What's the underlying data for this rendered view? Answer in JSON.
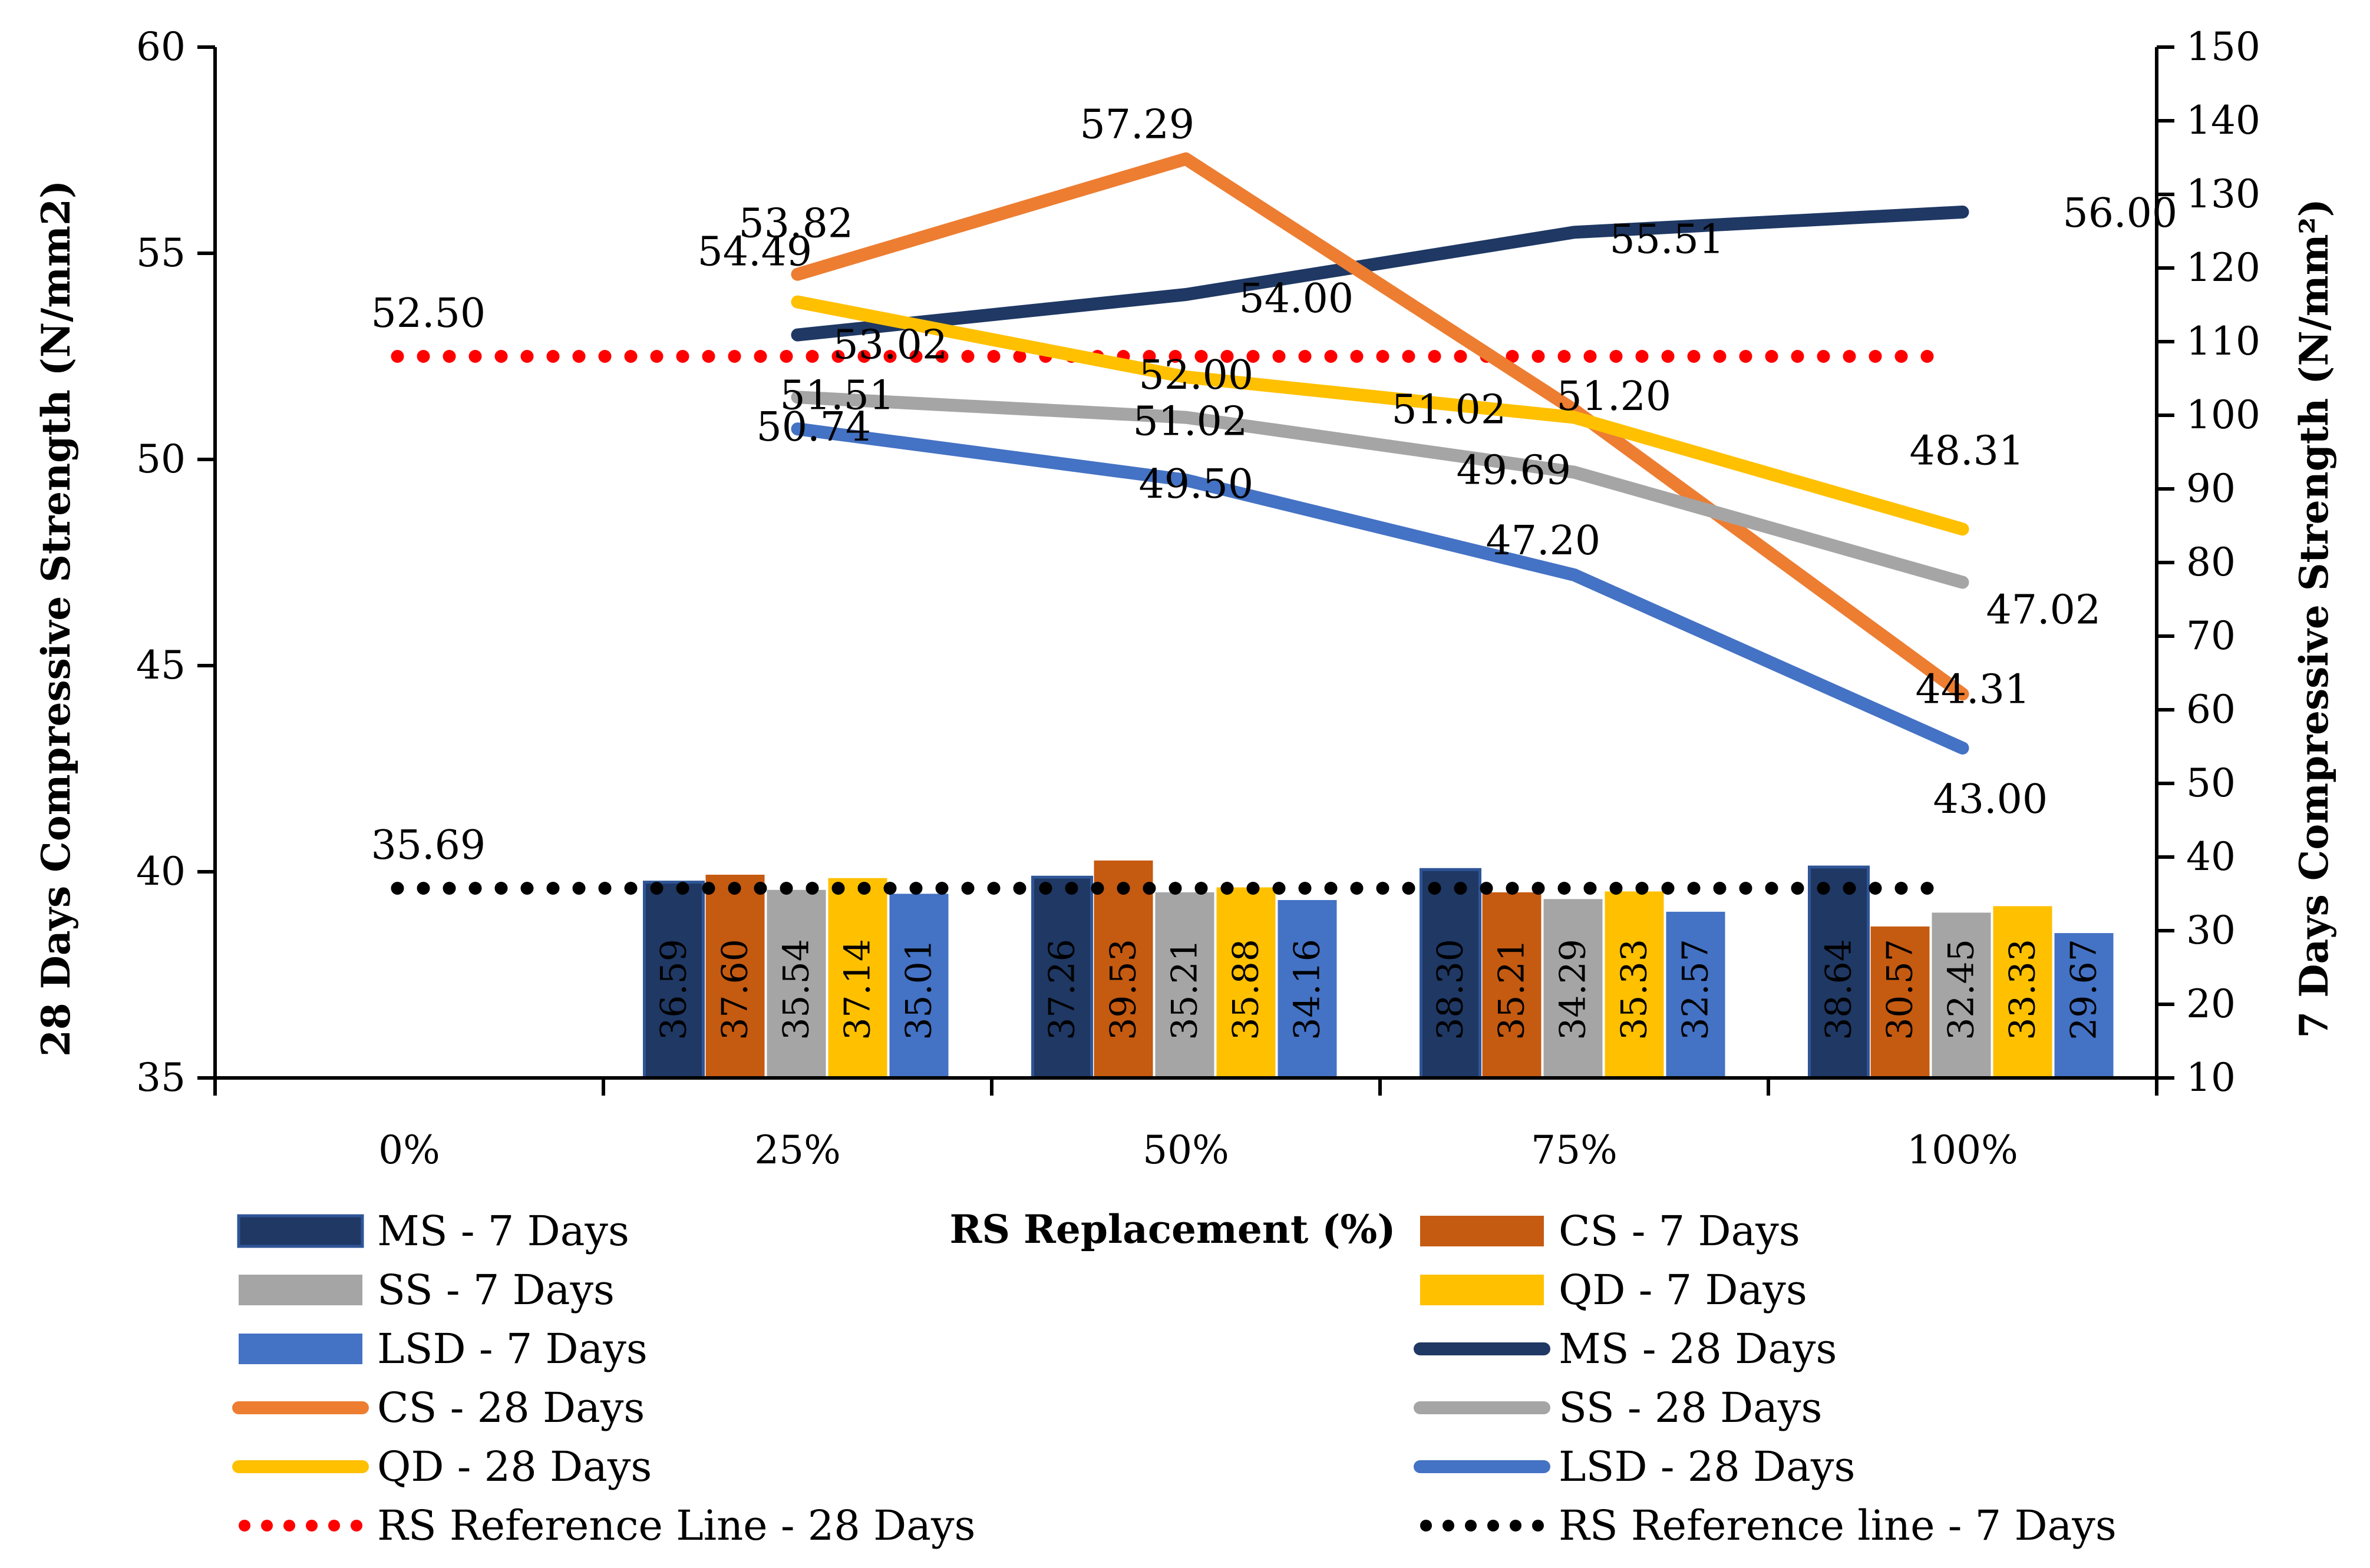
{
  "chart_data": {
    "type": "bar",
    "title": "",
    "xlabel": "RS Replacement (%)",
    "ylabel_left": "28 Days Compressive Strength (N/mm2)",
    "ylabel_right": "7 Days Compressive Strength (N/mm²)",
    "categories": [
      "0%",
      "25%",
      "50%",
      "75%",
      "100%"
    ],
    "ylim_left": [
      35,
      60
    ],
    "yticks_left": [
      35,
      40,
      45,
      50,
      55,
      60
    ],
    "ylim_right": [
      10,
      150
    ],
    "yticks_right": [
      10,
      20,
      30,
      40,
      50,
      60,
      70,
      80,
      90,
      100,
      110,
      120,
      130,
      140,
      150
    ],
    "grid": false,
    "legend_position": "bottom",
    "bar_series": [
      {
        "name": "MS - 7 Days",
        "color": "#1f3864",
        "values": [
          null,
          36.59,
          37.26,
          38.3,
          38.64
        ],
        "labels": [
          "",
          "36.59",
          "37.26",
          "38.30",
          "38.64"
        ]
      },
      {
        "name": "CS - 7 Days",
        "color": "#c55a11",
        "values": [
          null,
          37.6,
          39.53,
          35.21,
          30.57
        ],
        "labels": [
          "",
          "37.60",
          "39.53",
          "35.21",
          "30.57"
        ]
      },
      {
        "name": "SS - 7 Days",
        "color": "#a5a5a5",
        "values": [
          null,
          35.54,
          35.21,
          34.29,
          32.45
        ],
        "labels": [
          "",
          "35.54",
          "35.21",
          "34.29",
          "32.45"
        ]
      },
      {
        "name": "QD - 7 Days",
        "color": "#ffc000",
        "values": [
          null,
          37.14,
          35.88,
          35.33,
          33.33
        ],
        "labels": [
          "",
          "37.14",
          "35.88",
          "35.33",
          "33.33"
        ]
      },
      {
        "name": "LSD - 7 Days",
        "color": "#4472c4",
        "values": [
          null,
          35.01,
          34.16,
          32.57,
          29.67
        ],
        "labels": [
          "",
          "35.01",
          "34.16",
          "32.57",
          "29.67"
        ]
      }
    ],
    "line_series": [
      {
        "name": "MS - 28 Days",
        "color": "#1f3864",
        "values": [
          null,
          53.02,
          54.0,
          55.51,
          56.0
        ],
        "labels": [
          "",
          "53.02",
          "54.00",
          "55.51",
          "56.00"
        ]
      },
      {
        "name": "CS - 28 Days",
        "color": "#ed7d31",
        "values": [
          null,
          54.49,
          57.29,
          51.2,
          44.31
        ],
        "labels": [
          "",
          "54.49",
          "57.29",
          "51.20",
          "44.31"
        ]
      },
      {
        "name": "SS - 28 Days",
        "color": "#a5a5a5",
        "values": [
          null,
          51.51,
          51.02,
          49.69,
          47.02
        ],
        "labels": [
          "",
          "51.51",
          "51.02",
          "49.69",
          "47.02"
        ]
      },
      {
        "name": "QD - 28 Days",
        "color": "#ffc000",
        "values": [
          null,
          53.82,
          52.0,
          51.02,
          48.31
        ],
        "labels": [
          "",
          "53.82",
          "52.00",
          "51.02",
          "48.31"
        ]
      },
      {
        "name": "LSD - 28 Days",
        "color": "#4472c4",
        "values": [
          null,
          50.74,
          49.5,
          47.2,
          43.0
        ],
        "labels": [
          "",
          "50.74",
          "49.50",
          "47.20",
          "43.00"
        ]
      }
    ],
    "reference_lines": [
      {
        "name": "RS Reference Line - 28 Days",
        "color": "#ff0000",
        "axis": "left",
        "value": 52.5,
        "label": "52.50"
      },
      {
        "name": "RS Reference line - 7 Days",
        "color": "#000000",
        "axis": "left",
        "value": 39.6,
        "label": "35.69"
      }
    ]
  }
}
